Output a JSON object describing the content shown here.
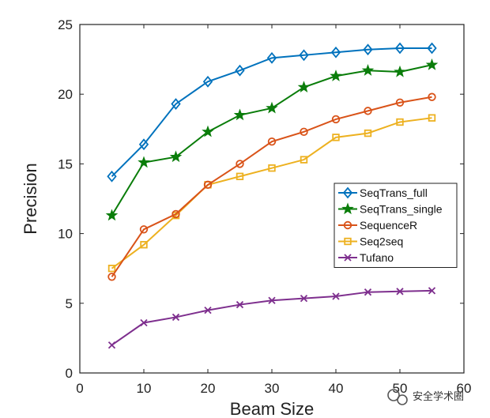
{
  "chart_data": {
    "type": "line",
    "title": "",
    "xlabel": "Beam Size",
    "ylabel": "Precision",
    "xlim": [
      0,
      60
    ],
    "ylim": [
      0,
      25
    ],
    "xticks": [
      0,
      10,
      20,
      30,
      40,
      50,
      60
    ],
    "yticks": [
      0,
      5,
      10,
      15,
      20,
      25
    ],
    "grid": false,
    "legend_position": "center-right",
    "x": [
      5,
      10,
      15,
      20,
      25,
      30,
      35,
      40,
      45,
      50,
      55
    ],
    "series": [
      {
        "name": "SeqTrans_full",
        "color": "#0072BD",
        "marker": "diamond",
        "values": [
          14.1,
          16.4,
          19.3,
          20.9,
          21.7,
          22.6,
          22.8,
          23.0,
          23.2,
          23.3,
          23.3
        ]
      },
      {
        "name": "SeqTrans_single",
        "color": "#0A7D0A",
        "marker": "star",
        "values": [
          11.3,
          15.1,
          15.5,
          17.3,
          18.5,
          19.0,
          20.5,
          21.3,
          21.7,
          21.6,
          22.1
        ]
      },
      {
        "name": "SequenceR",
        "color": "#D95319",
        "marker": "circle",
        "values": [
          6.9,
          10.3,
          11.4,
          13.5,
          15.0,
          16.6,
          17.3,
          18.2,
          18.8,
          19.4,
          19.8
        ]
      },
      {
        "name": "Seq2seq",
        "color": "#EDB120",
        "marker": "square",
        "values": [
          7.5,
          9.2,
          11.3,
          13.5,
          14.1,
          14.7,
          15.3,
          16.9,
          17.2,
          18.0,
          18.3
        ]
      },
      {
        "name": "Tufano",
        "color": "#7E2F8E",
        "marker": "x",
        "values": [
          2.0,
          3.6,
          4.0,
          4.5,
          4.9,
          5.2,
          5.35,
          5.5,
          5.8,
          5.85,
          5.9
        ]
      }
    ]
  },
  "watermark": {
    "text": "安全学术圈"
  }
}
